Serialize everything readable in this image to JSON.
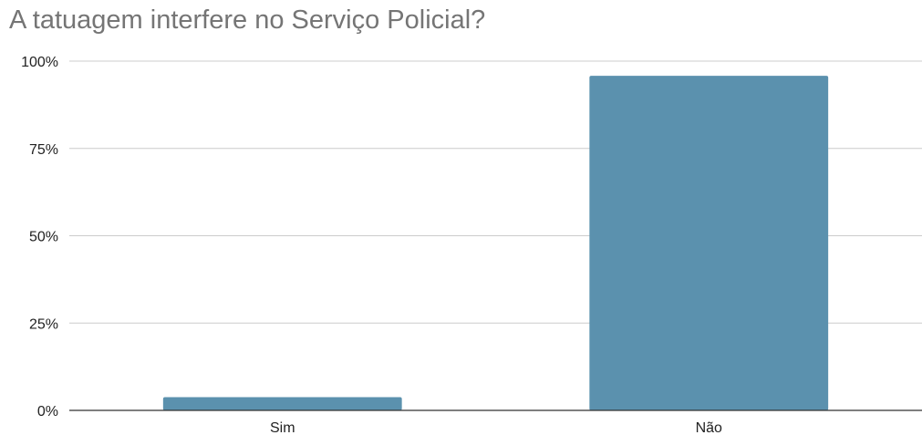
{
  "chart_data": {
    "type": "bar",
    "title": "A tatuagem interfere no Serviço Policial?",
    "xlabel": "",
    "ylabel": "",
    "categories": [
      "Sim",
      "Não"
    ],
    "series": [
      {
        "values": [
          3.8,
          95.8
        ]
      }
    ],
    "ylim": [
      0,
      100
    ],
    "yticks": [
      0,
      25,
      50,
      75,
      100
    ],
    "ytick_labels": [
      "0%",
      "25%",
      "50%",
      "75%",
      "100%"
    ],
    "grid": true,
    "legend": "none",
    "bar_color": "#5b91ae",
    "grid_color": "#cccccc",
    "axis_color": "#333333"
  }
}
